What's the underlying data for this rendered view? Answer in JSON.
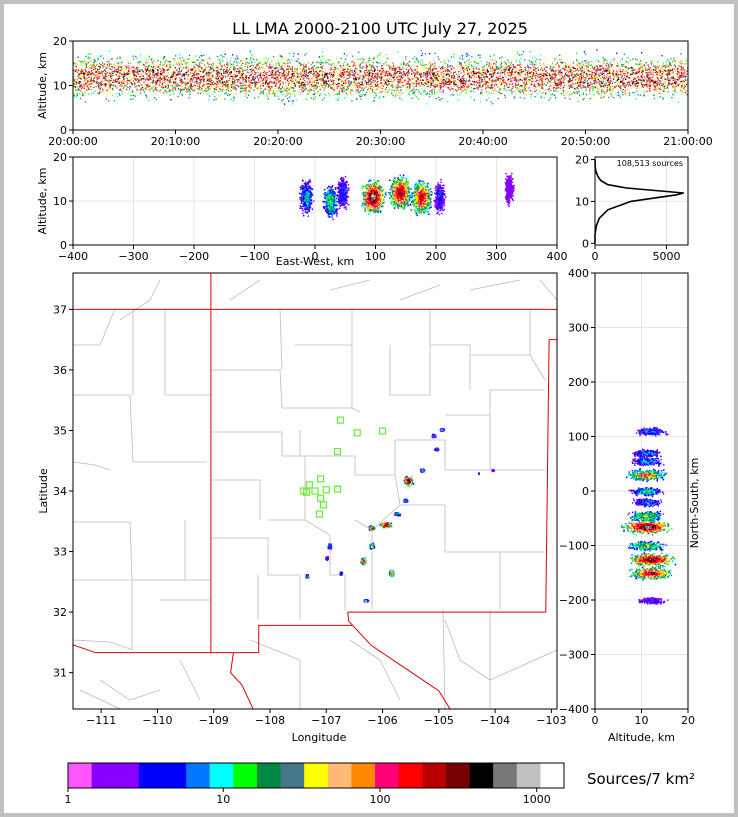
{
  "title": "LL LMA 2000-2100 UTC July 27, 2025",
  "colors": {
    "frame": "#c0c0c0",
    "border": "#dd0000",
    "county": "#bbbbbb",
    "station": "#66ee33",
    "grid": "#e6e6e6"
  },
  "chart_data": [
    {
      "name": "altitude-time",
      "type": "scatter",
      "ylabel": "Altitude, km",
      "ylim": [
        0,
        20
      ],
      "yticks": [
        "0",
        "10",
        "20"
      ],
      "xlim": [
        "20:00:00",
        "21:00:00"
      ],
      "xticks": [
        "20:00:00",
        "20:10:00",
        "20:20:00",
        "20:30:00",
        "20:40:00",
        "20:50:00",
        "21:00:00"
      ],
      "peak_altitude_km": 12
    },
    {
      "name": "altitude-east-west",
      "type": "scatter",
      "xlabel": "East-West, km",
      "ylabel": "Altitude, km",
      "xlim": [
        -400,
        400
      ],
      "ylim": [
        0,
        20
      ],
      "xticks": [
        "−400",
        "−300",
        "−200",
        "−100",
        "0",
        "100",
        "200",
        "300",
        "400"
      ],
      "yticks": [
        "0",
        "10",
        "20"
      ],
      "clusters": [
        {
          "x_km": -15,
          "alt_km": 11,
          "density": 0.35
        },
        {
          "x_km": 25,
          "alt_km": 10,
          "density": 0.45
        },
        {
          "x_km": 45,
          "alt_km": 12,
          "density": 0.25
        },
        {
          "x_km": 95,
          "alt_km": 11,
          "density": 1.0
        },
        {
          "x_km": 140,
          "alt_km": 12,
          "density": 0.9
        },
        {
          "x_km": 175,
          "alt_km": 11,
          "density": 0.85
        },
        {
          "x_km": 205,
          "alt_km": 11,
          "density": 0.2
        },
        {
          "x_km": 320,
          "alt_km": 13,
          "density": 0.08
        }
      ]
    },
    {
      "name": "altitude-histogram",
      "type": "line",
      "annotation": "108,513 sources",
      "xlim": [
        0,
        6500
      ],
      "ylim": [
        0,
        20
      ],
      "xticks": [
        "0",
        "5000"
      ],
      "yticks": [
        "0",
        "10",
        "20"
      ],
      "points": [
        [
          0,
          0
        ],
        [
          0,
          2
        ],
        [
          80,
          4
        ],
        [
          300,
          6
        ],
        [
          900,
          8
        ],
        [
          2500,
          10
        ],
        [
          5600,
          11.5
        ],
        [
          6200,
          12
        ],
        [
          4200,
          12.6
        ],
        [
          2200,
          13.2
        ],
        [
          900,
          14
        ],
        [
          400,
          15
        ],
        [
          200,
          16
        ],
        [
          80,
          17
        ],
        [
          20,
          18
        ],
        [
          0,
          20
        ]
      ]
    },
    {
      "name": "plan-view",
      "type": "scatter",
      "xlabel": "Longitude",
      "ylabel": "Latitude",
      "xlim": [
        -111.5,
        -102.9
      ],
      "ylim": [
        30.4,
        37.6
      ],
      "xticks": [
        "−111",
        "−110",
        "−109",
        "−108",
        "−107",
        "−106",
        "−105",
        "−104",
        "−103"
      ],
      "yticks": [
        "31",
        "32",
        "33",
        "34",
        "35",
        "36",
        "37"
      ],
      "stations": [
        [
          -106.75,
          35.17
        ],
        [
          -106.45,
          34.96
        ],
        [
          -106.0,
          34.99
        ],
        [
          -106.8,
          34.65
        ],
        [
          -107.1,
          34.2
        ],
        [
          -107.3,
          34.1
        ],
        [
          -107.4,
          34.0
        ],
        [
          -107.2,
          34.0
        ],
        [
          -107.0,
          34.02
        ],
        [
          -106.8,
          34.03
        ],
        [
          -107.1,
          33.88
        ],
        [
          -107.05,
          33.77
        ],
        [
          -107.12,
          33.62
        ],
        [
          -107.35,
          33.98
        ]
      ],
      "storms": [
        {
          "lon": -105.55,
          "lat": 34.18,
          "w": 0.18,
          "h": 0.18,
          "density": 0.95
        },
        {
          "lon": -105.1,
          "lat": 34.92,
          "w": 0.08,
          "h": 0.06,
          "density": 0.3
        },
        {
          "lon": -104.95,
          "lat": 35.02,
          "w": 0.08,
          "h": 0.05,
          "density": 0.35
        },
        {
          "lon": -105.05,
          "lat": 34.7,
          "w": 0.08,
          "h": 0.05,
          "density": 0.3
        },
        {
          "lon": -105.3,
          "lat": 34.35,
          "w": 0.08,
          "h": 0.06,
          "density": 0.4
        },
        {
          "lon": -105.6,
          "lat": 33.85,
          "w": 0.08,
          "h": 0.06,
          "density": 0.35
        },
        {
          "lon": -105.75,
          "lat": 33.63,
          "w": 0.12,
          "h": 0.06,
          "density": 0.45
        },
        {
          "lon": -105.95,
          "lat": 33.45,
          "w": 0.22,
          "h": 0.1,
          "density": 1.0
        },
        {
          "lon": -106.2,
          "lat": 33.4,
          "w": 0.12,
          "h": 0.08,
          "density": 0.8
        },
        {
          "lon": -106.2,
          "lat": 33.1,
          "w": 0.1,
          "h": 0.1,
          "density": 0.6
        },
        {
          "lon": -106.35,
          "lat": 32.85,
          "w": 0.1,
          "h": 0.12,
          "density": 0.9
        },
        {
          "lon": -105.85,
          "lat": 32.65,
          "w": 0.1,
          "h": 0.12,
          "density": 0.75
        },
        {
          "lon": -106.95,
          "lat": 33.1,
          "w": 0.07,
          "h": 0.1,
          "density": 0.4
        },
        {
          "lon": -107.0,
          "lat": 32.9,
          "w": 0.05,
          "h": 0.06,
          "density": 0.3
        },
        {
          "lon": -106.75,
          "lat": 32.65,
          "w": 0.05,
          "h": 0.06,
          "density": 0.3
        },
        {
          "lon": -107.35,
          "lat": 32.6,
          "w": 0.05,
          "h": 0.08,
          "density": 0.4
        },
        {
          "lon": -106.3,
          "lat": 32.2,
          "w": 0.1,
          "h": 0.04,
          "density": 0.3
        },
        {
          "lon": -104.05,
          "lat": 34.35,
          "w": 0.05,
          "h": 0.03,
          "density": 0.15
        },
        {
          "lon": -104.3,
          "lat": 34.3,
          "w": 0.01,
          "h": 0.02,
          "density": 0.1
        }
      ]
    },
    {
      "name": "north-south-altitude",
      "type": "scatter",
      "xlabel": "Altitude, km",
      "ylabel": "North-South, km",
      "xlim": [
        0,
        20
      ],
      "ylim": [
        -400,
        400
      ],
      "xticks": [
        "0",
        "10",
        "20"
      ],
      "yticks": [
        "−400",
        "−300",
        "−200",
        "−100",
        "0",
        "100",
        "200",
        "300",
        "400"
      ],
      "bands": [
        {
          "ns_km": 110,
          "alt_km": 12,
          "density": 0.3
        },
        {
          "ns_km": 70,
          "alt_km": 11,
          "density": 0.3
        },
        {
          "ns_km": 55,
          "alt_km": 11,
          "density": 0.35
        },
        {
          "ns_km": 30,
          "alt_km": 11,
          "density": 0.7
        },
        {
          "ns_km": 0,
          "alt_km": 11,
          "density": 0.4
        },
        {
          "ns_km": -20,
          "alt_km": 11,
          "density": 0.3
        },
        {
          "ns_km": -45,
          "alt_km": 11,
          "density": 0.55
        },
        {
          "ns_km": -65,
          "alt_km": 11,
          "density": 1.0
        },
        {
          "ns_km": -100,
          "alt_km": 11,
          "density": 0.55
        },
        {
          "ns_km": -125,
          "alt_km": 12,
          "density": 0.95
        },
        {
          "ns_km": -150,
          "alt_km": 12,
          "density": 0.85
        },
        {
          "ns_km": -200,
          "alt_km": 12,
          "density": 0.2
        }
      ]
    }
  ],
  "colorbar": {
    "label": "Sources/7 km²",
    "ticks": [
      "1",
      "10",
      "100",
      "1000"
    ],
    "colors": [
      "#ff55ff",
      "#8800ff",
      "#8800ff",
      "#0000ff",
      "#0000ff",
      "#0077ff",
      "#00ffff",
      "#00ff00",
      "#008844",
      "#447788",
      "#ffff00",
      "#ffbb77",
      "#ff8800",
      "#ff0077",
      "#ff0000",
      "#bb0000",
      "#770000",
      "#000000",
      "#777777",
      "#c0c0c0",
      "#ffffff"
    ]
  }
}
